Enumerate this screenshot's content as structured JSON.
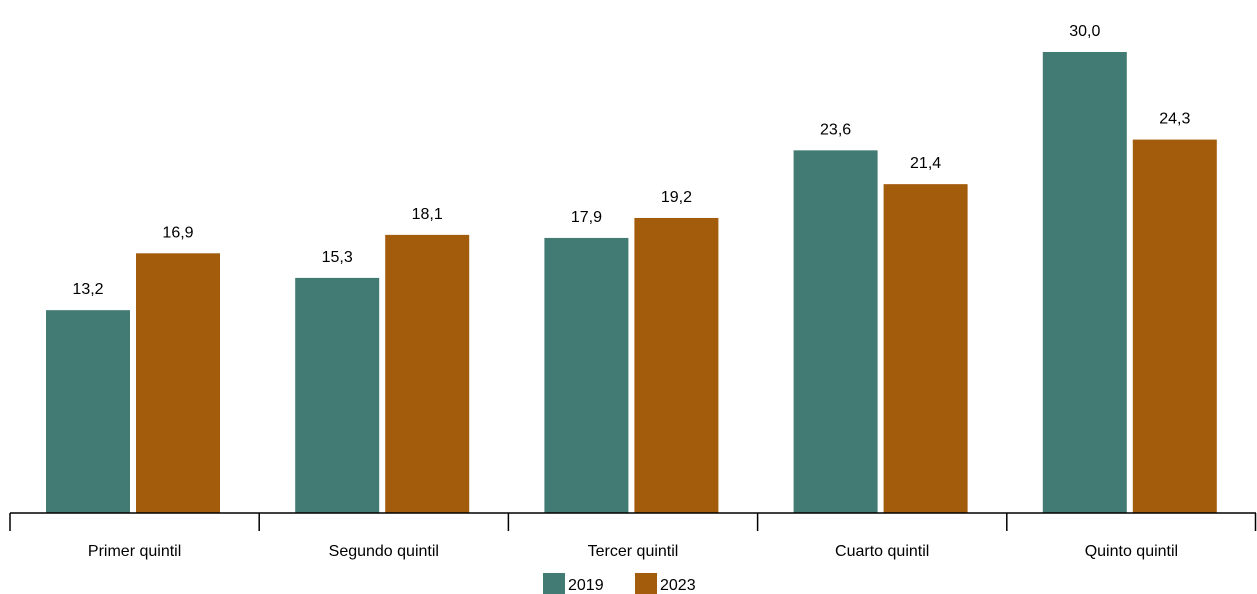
{
  "chart_data": {
    "type": "bar",
    "categories": [
      "Primer quintil",
      "Segundo quintil",
      "Tercer quintil",
      "Cuarto quintil",
      "Quinto quintil"
    ],
    "series": [
      {
        "name": "2019",
        "values": [
          13.2,
          15.3,
          17.9,
          23.6,
          30.0
        ],
        "labels": [
          "13,2",
          "15,3",
          "17,9",
          "23,6",
          "30,0"
        ],
        "color": "#427b73"
      },
      {
        "name": "2023",
        "values": [
          16.9,
          18.1,
          19.2,
          21.4,
          24.3
        ],
        "labels": [
          "16,9",
          "18,1",
          "19,2",
          "21,4",
          "24,3"
        ],
        "color": "#a35c0c"
      }
    ],
    "title": "",
    "xlabel": "",
    "ylabel": "",
    "ylim": [
      0,
      30
    ],
    "grid": false,
    "legend": "bottom-center"
  }
}
